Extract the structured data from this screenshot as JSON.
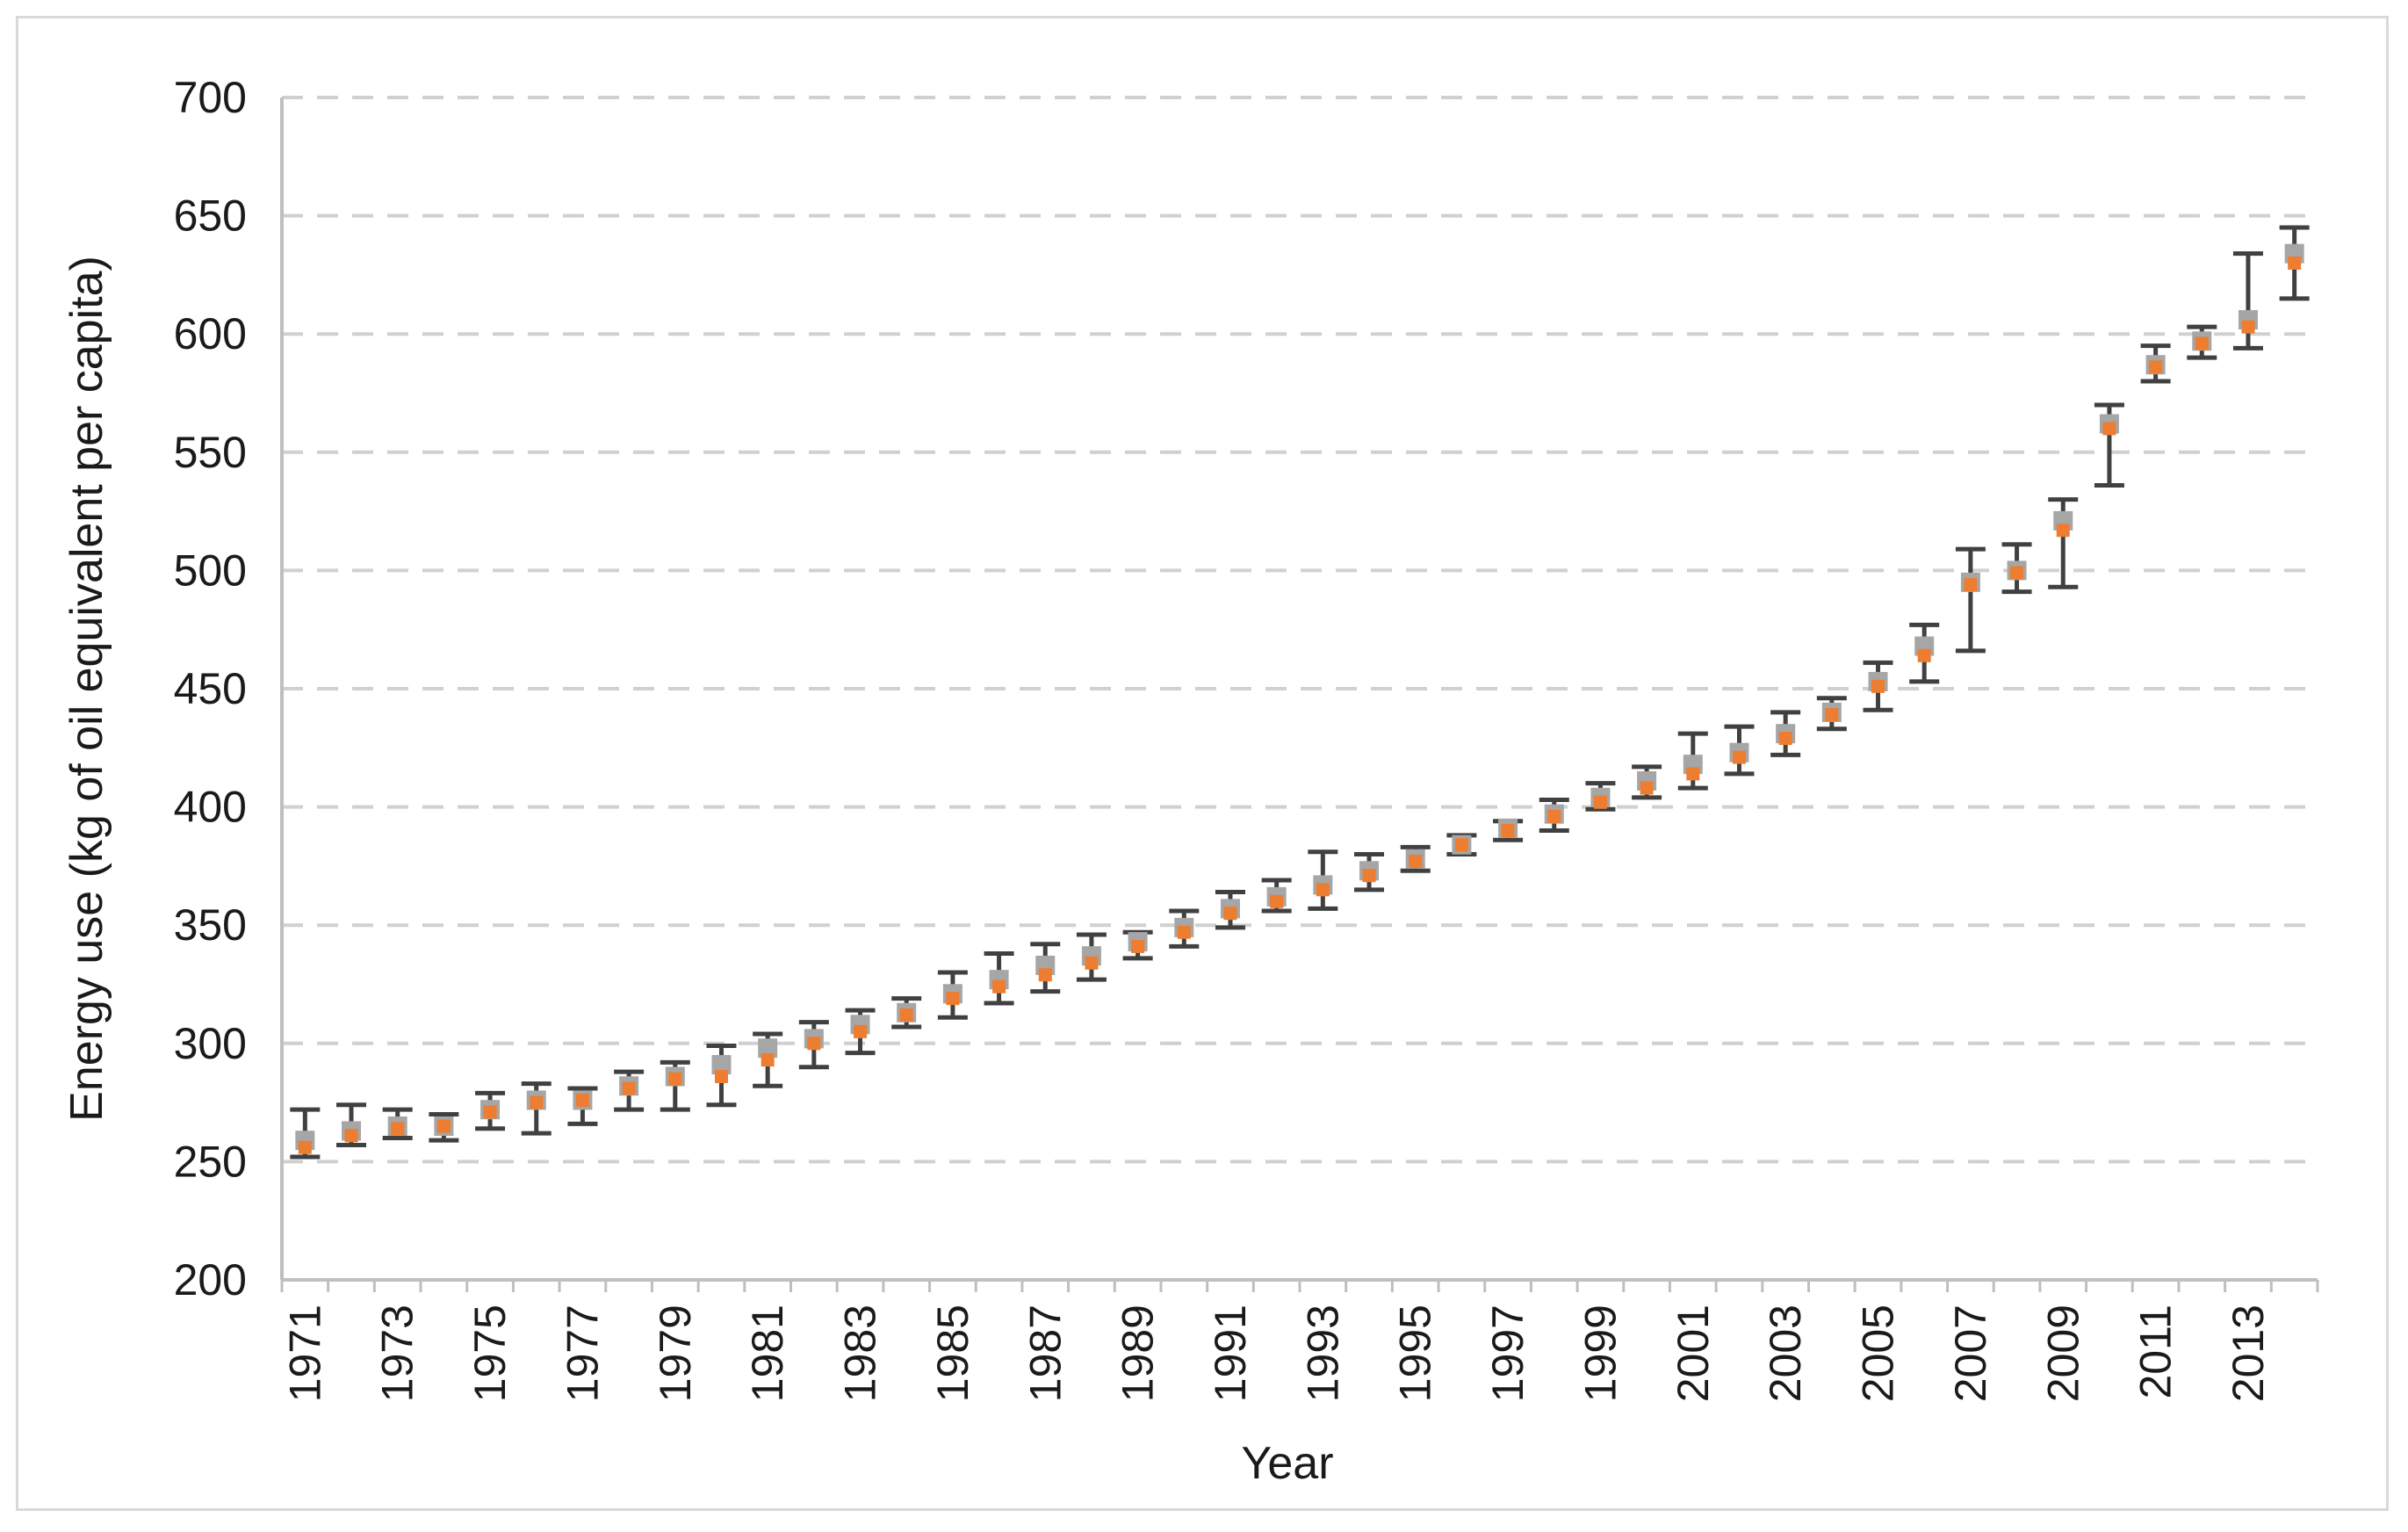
{
  "chart_data": {
    "type": "scatter",
    "title": "",
    "xlabel": "Year",
    "ylabel": "Energy use (kg of oil equivalent per capita)",
    "ylim": [
      200,
      700
    ],
    "yticks": [
      200,
      250,
      300,
      350,
      400,
      450,
      500,
      550,
      600,
      650,
      700
    ],
    "x": [
      1971,
      1972,
      1973,
      1974,
      1975,
      1976,
      1977,
      1978,
      1979,
      1980,
      1981,
      1982,
      1983,
      1984,
      1985,
      1986,
      1987,
      1988,
      1989,
      1990,
      1991,
      1992,
      1993,
      1994,
      1995,
      1996,
      1997,
      1998,
      1999,
      2000,
      2001,
      2002,
      2003,
      2004,
      2005,
      2006,
      2007,
      2008,
      2009,
      2010,
      2011,
      2012,
      2013,
      2014
    ],
    "xtick_labels": [
      "1971",
      "1973",
      "1975",
      "1977",
      "1979",
      "1981",
      "1983",
      "1985",
      "1987",
      "1989",
      "1991",
      "1993",
      "1995",
      "1997",
      "1999",
      "2001",
      "2003",
      "2005",
      "2007",
      "2009",
      "2011",
      "2013"
    ],
    "grid": "horizontal dashed",
    "series": [
      {
        "color": "#a6a6a6",
        "values": [
          259,
          263,
          265,
          265,
          272,
          276,
          276,
          282,
          286,
          291,
          298,
          302,
          308,
          313,
          321,
          327,
          333,
          337,
          343,
          349,
          357,
          362,
          367,
          373,
          378,
          384,
          391,
          397,
          404,
          411,
          418,
          423,
          431,
          440,
          453,
          468,
          495,
          500,
          521,
          562,
          587,
          597,
          606,
          634
        ]
      },
      {
        "color": "#ed7d31",
        "values": [
          256,
          261,
          264,
          265,
          271,
          275,
          276,
          281,
          285,
          286,
          293,
          300,
          305,
          312,
          319,
          324,
          329,
          334,
          341,
          347,
          355,
          360,
          365,
          371,
          377,
          384,
          390,
          396,
          402,
          408,
          414,
          421,
          429,
          439,
          451,
          464,
          494,
          499,
          517,
          560,
          586,
          596,
          603,
          630
        ]
      }
    ],
    "error_bars": {
      "color": "#404040",
      "low": [
        252,
        257,
        260,
        259,
        264,
        262,
        266,
        272,
        272,
        274,
        282,
        290,
        296,
        307,
        311,
        317,
        322,
        327,
        336,
        341,
        349,
        356,
        357,
        365,
        373,
        380,
        386,
        390,
        399,
        404,
        408,
        414,
        422,
        433,
        441,
        453,
        466,
        491,
        493,
        536,
        580,
        590,
        594,
        615
      ],
      "high": [
        272,
        274,
        272,
        270,
        279,
        283,
        281,
        288,
        292,
        299,
        304,
        309,
        314,
        319,
        330,
        338,
        342,
        346,
        347,
        356,
        364,
        369,
        381,
        380,
        383,
        388,
        394,
        403,
        410,
        417,
        431,
        434,
        440,
        446,
        461,
        477,
        509,
        511,
        530,
        570,
        595,
        603,
        634,
        645
      ]
    }
  }
}
